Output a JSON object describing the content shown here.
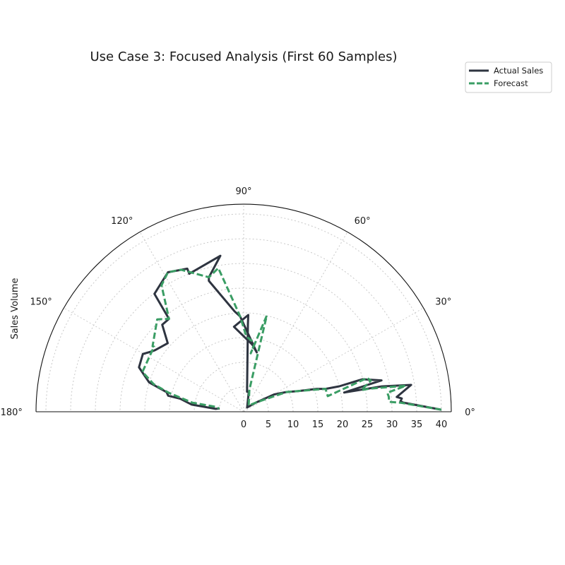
{
  "chart_data": {
    "type": "polar-line",
    "title": "Use Case 3: Focused Analysis (First 60 Samples)",
    "ylabel": "Sales Volume",
    "theta_range_deg": [
      0,
      180
    ],
    "r_range": [
      0,
      42
    ],
    "r_ticks": [
      0,
      5,
      10,
      15,
      20,
      25,
      30,
      35,
      40
    ],
    "theta_ticks_deg": [
      0,
      30,
      60,
      90,
      120,
      150,
      180
    ],
    "theta_tick_labels": [
      "0°",
      "30°",
      "60°",
      "90°",
      "120°",
      "150°",
      "180°"
    ],
    "grid": true,
    "legend_position": "upper-right",
    "series": [
      {
        "name": "Actual Sales",
        "color": "#2e3440",
        "style": "solid",
        "points": [
          [
            0.6,
            40.0
          ],
          [
            3.3,
            32.3
          ],
          [
            3.9,
            31.8
          ],
          [
            4.8,
            32.1
          ],
          [
            5.5,
            31.1
          ],
          [
            9.1,
            34.3
          ],
          [
            10.4,
            28.4
          ],
          [
            10.8,
            20.7
          ],
          [
            12.8,
            28.6
          ],
          [
            15.3,
            24.9
          ],
          [
            14.9,
            20.0
          ],
          [
            15.6,
            17.2
          ],
          [
            17.4,
            15.5
          ],
          [
            20.8,
            11.8
          ],
          [
            24.8,
            9.5
          ],
          [
            29.6,
            7.1
          ],
          [
            36.4,
            3.2
          ],
          [
            50.8,
            1.1
          ],
          [
            75.4,
            4.1
          ],
          [
            80.4,
            4.1
          ],
          [
            87.2,
            17.6
          ],
          [
            87.3,
            19.6
          ],
          [
            96.5,
            17.3
          ],
          [
            82.7,
            13.7
          ],
          [
            77.6,
            12.3
          ],
          [
            92.1,
            19.3
          ],
          [
            95.2,
            20.4
          ],
          [
            104.9,
            27.4
          ],
          [
            104.5,
            28.1
          ],
          [
            98.5,
            31.9
          ],
          [
            111.5,
            30.0
          ],
          [
            111.5,
            31.1
          ],
          [
            118.5,
            32.1
          ],
          [
            127.1,
            29.9
          ],
          [
            128.8,
            24.1
          ],
          [
            133.1,
            24.1
          ],
          [
            137.9,
            20.7
          ],
          [
            145.1,
            21.8
          ],
          [
            146.6,
            22.2
          ],
          [
            150.2,
            23.5
          ],
          [
            157.0,
            23.0
          ],
          [
            162.8,
            20.0
          ],
          [
            165.7,
            16.1
          ],
          [
            168.0,
            15.6
          ],
          [
            168.4,
            13.1
          ],
          [
            172.2,
            10.6
          ],
          [
            174.1,
            5.7
          ],
          [
            172.1,
            4.9
          ]
        ]
      },
      {
        "name": "Forecast",
        "color": "#3a9d64",
        "style": "dashed",
        "points": [
          [
            0.6,
            40.0
          ],
          [
            3.3,
            31.8
          ],
          [
            3.9,
            29.5
          ],
          [
            6.0,
            29.5
          ],
          [
            7.5,
            29.3
          ],
          [
            9.1,
            33.2
          ],
          [
            10.4,
            25.9
          ],
          [
            10.4,
            24.2
          ],
          [
            13.8,
            26.5
          ],
          [
            15.3,
            25.9
          ],
          [
            10.5,
            17.3
          ],
          [
            15.6,
            17.2
          ],
          [
            20.8,
            11.8
          ],
          [
            24.8,
            9.5
          ],
          [
            36.4,
            3.2
          ],
          [
            50.8,
            1.6
          ],
          [
            75.4,
            4.6
          ],
          [
            76.5,
            20.0
          ],
          [
            83.1,
            11.9
          ],
          [
            80.8,
            14.1
          ],
          [
            87.9,
            15.2
          ],
          [
            92.1,
            19.3
          ],
          [
            95.1,
            22.2
          ],
          [
            100.0,
            29.5
          ],
          [
            104.5,
            28.1
          ],
          [
            113.8,
            31.4
          ],
          [
            118.5,
            32.1
          ],
          [
            123.0,
            30.5
          ],
          [
            128.8,
            24.1
          ],
          [
            133.1,
            25.6
          ],
          [
            144.3,
            22.7
          ],
          [
            144.0,
            22.4
          ],
          [
            158.5,
            22.0
          ],
          [
            163.0,
            19.0
          ],
          [
            165.8,
            15.6
          ],
          [
            170.0,
            10.5
          ],
          [
            170.0,
            5.6
          ],
          [
            172.9,
            5.0
          ]
        ]
      }
    ]
  }
}
